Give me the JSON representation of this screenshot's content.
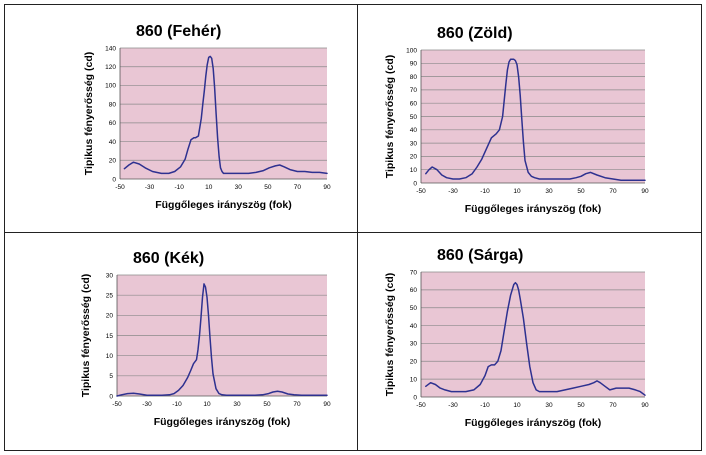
{
  "colors": {
    "plot_background": "#e9c6d4",
    "gridline": "#8a8a8a",
    "curve": "#2e3190"
  },
  "chart_data": [
    {
      "type": "line",
      "title": "860 (Fehér)",
      "xlabel": "Függőleges irányszög (fok)",
      "ylabel": "Tipikus fényerősség (cd)",
      "xlim": [
        -50,
        90
      ],
      "ylim": [
        0,
        140
      ],
      "xticks": [
        -50,
        -30,
        -10,
        10,
        30,
        50,
        70,
        90
      ],
      "yticks": [
        0,
        20,
        40,
        60,
        80,
        100,
        120,
        140
      ],
      "grid": true,
      "series": [
        {
          "x": [
            -47,
            -44,
            -41,
            -37,
            -33,
            -28,
            -22,
            -17,
            -13,
            -9,
            -6,
            -4,
            -2,
            0,
            1,
            3,
            5,
            6,
            7,
            8,
            9,
            10,
            11,
            12,
            13,
            14,
            15,
            16,
            17,
            18,
            19,
            20,
            21,
            22,
            24,
            27,
            32,
            37,
            42,
            47,
            51,
            55,
            58,
            61,
            65,
            70,
            75,
            80,
            85,
            90
          ],
          "y": [
            11,
            15,
            18,
            16,
            12,
            8,
            6,
            6,
            8,
            13,
            21,
            32,
            42,
            44,
            44,
            46,
            65,
            80,
            94,
            110,
            122,
            130,
            131,
            129,
            118,
            98,
            70,
            44,
            24,
            12,
            8,
            6,
            6,
            6,
            6,
            6,
            6,
            6,
            7,
            9,
            12,
            14,
            15,
            13,
            10,
            8,
            8,
            7,
            7,
            6
          ]
        }
      ]
    },
    {
      "type": "line",
      "title": "860 (Zöld)",
      "xlabel": "Függőleges irányszög (fok)",
      "ylabel": "Tipikus fényerősség (cd)",
      "xlim": [
        -50,
        90
      ],
      "ylim": [
        0,
        100
      ],
      "xticks": [
        -50,
        -30,
        -10,
        10,
        30,
        50,
        70,
        90
      ],
      "yticks": [
        0,
        10,
        20,
        30,
        40,
        50,
        60,
        70,
        80,
        90,
        100
      ],
      "grid": true,
      "series": [
        {
          "x": [
            -47,
            -45,
            -43,
            -40,
            -37,
            -34,
            -30,
            -26,
            -22,
            -18,
            -15,
            -12,
            -9,
            -6,
            -3,
            -1,
            1,
            2,
            3,
            4,
            5,
            6,
            7,
            8,
            9,
            10,
            11,
            12,
            13,
            14,
            15,
            17,
            19,
            21,
            24,
            28,
            33,
            38,
            43,
            47,
            50,
            53,
            56,
            60,
            65,
            70,
            75,
            80,
            85,
            90
          ],
          "y": [
            7,
            10,
            12,
            10,
            6,
            4,
            3,
            3,
            4,
            7,
            12,
            18,
            26,
            34,
            37,
            40,
            50,
            62,
            74,
            85,
            91,
            93,
            93,
            93,
            92,
            89,
            80,
            66,
            48,
            31,
            17,
            8,
            5,
            4,
            3,
            3,
            3,
            3,
            3,
            4,
            5,
            7,
            8,
            6,
            4,
            3,
            2,
            2,
            2,
            2
          ]
        }
      ]
    },
    {
      "type": "line",
      "title": "860 (Kék)",
      "xlabel": "Függőleges irányszög (fok)",
      "ylabel": "Tipikus fényerősség (cd)",
      "xlim": [
        -50,
        90
      ],
      "ylim": [
        0,
        30
      ],
      "xticks": [
        -50,
        -30,
        -10,
        10,
        30,
        50,
        70,
        90
      ],
      "yticks": [
        0,
        5,
        10,
        15,
        20,
        25,
        30
      ],
      "grid": true,
      "series": [
        {
          "x": [
            -50,
            -47,
            -43,
            -39,
            -35,
            -30,
            -25,
            -20,
            -15,
            -12,
            -9,
            -6,
            -3,
            -1,
            1,
            3,
            4,
            5,
            6,
            7,
            8,
            9,
            10,
            11,
            12,
            13,
            14,
            16,
            18,
            20,
            23,
            27,
            32,
            37,
            42,
            47,
            51,
            54,
            57,
            60,
            64,
            68,
            73,
            78,
            84,
            90
          ],
          "y": [
            0,
            0.3,
            0.6,
            0.7,
            0.5,
            0.2,
            0.2,
            0.2,
            0.3,
            0.6,
            1.4,
            2.6,
            4.5,
            6.2,
            8.0,
            9.0,
            11.5,
            15.0,
            19.5,
            24.5,
            27.8,
            27.0,
            24.5,
            20.0,
            14.5,
            9.5,
            5.5,
            1.8,
            0.6,
            0.3,
            0.2,
            0.2,
            0.2,
            0.2,
            0.2,
            0.3,
            0.6,
            1.0,
            1.2,
            1.0,
            0.5,
            0.3,
            0.2,
            0.2,
            0.2,
            0.2
          ]
        }
      ]
    },
    {
      "type": "line",
      "title": "860 (Sárga)",
      "xlabel": "Függőleges irányszög (fok)",
      "ylabel": "Tipikus fényerősség (cd)",
      "xlim": [
        -50,
        90
      ],
      "ylim": [
        0,
        70
      ],
      "xticks": [
        -50,
        -30,
        -10,
        10,
        30,
        50,
        70,
        90
      ],
      "yticks": [
        0,
        10,
        20,
        30,
        40,
        50,
        60,
        70
      ],
      "grid": true,
      "series": [
        {
          "x": [
            -47,
            -44,
            -41,
            -38,
            -35,
            -31,
            -26,
            -22,
            -17,
            -13,
            -10,
            -8,
            -6,
            -4,
            -2,
            0,
            2,
            4,
            6,
            8,
            9,
            10,
            11,
            12,
            14,
            16,
            18,
            20,
            22,
            24,
            26,
            30,
            35,
            40,
            45,
            50,
            55,
            58,
            60,
            62,
            65,
            68,
            72,
            76,
            80,
            84,
            87,
            90
          ],
          "y": [
            6,
            8,
            7,
            5,
            4,
            3,
            3,
            3,
            4,
            7,
            12,
            17,
            18,
            18,
            20,
            26,
            37,
            48,
            57,
            63,
            64,
            63,
            60,
            55,
            44,
            30,
            17,
            8,
            4,
            3,
            3,
            3,
            3,
            4,
            5,
            6,
            7,
            8,
            9,
            8,
            6,
            4,
            5,
            5,
            5,
            4,
            3,
            1
          ]
        }
      ]
    }
  ]
}
